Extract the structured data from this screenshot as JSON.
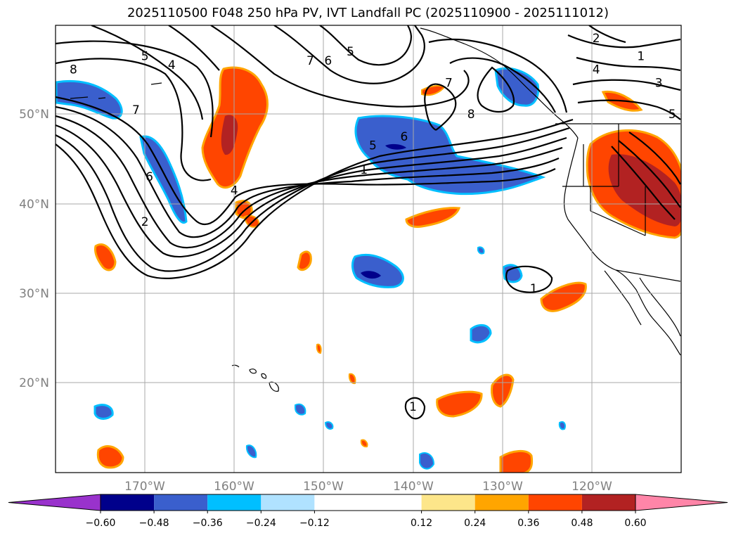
{
  "chart_data": {
    "type": "map-contour",
    "title": "2025110500 F048 250 hPa PV, IVT Landfall PC (2025110900 - 2025111012)",
    "xlim": [
      -180,
      -110
    ],
    "ylim": [
      10,
      60
    ],
    "lat_ticks": [
      {
        "value": 20,
        "label": "20°N"
      },
      {
        "value": 30,
        "label": "30°N"
      },
      {
        "value": 40,
        "label": "40°N"
      },
      {
        "value": 50,
        "label": "50°N"
      }
    ],
    "lon_ticks": [
      {
        "value": -170,
        "label": "170°W"
      },
      {
        "value": -160,
        "label": "160°W"
      },
      {
        "value": -150,
        "label": "150°W"
      },
      {
        "value": -140,
        "label": "140°W"
      },
      {
        "value": -130,
        "label": "130°W"
      },
      {
        "value": -120,
        "label": "120°W"
      }
    ],
    "colorbar": {
      "levels": [
        -0.6,
        -0.48,
        -0.36,
        -0.24,
        -0.12,
        0.12,
        0.24,
        0.36,
        0.48,
        0.6
      ],
      "tick_labels": [
        "−0.60",
        "−0.48",
        "−0.36",
        "−0.24",
        "−0.12",
        "0.12",
        "0.24",
        "0.36",
        "0.48",
        "0.60"
      ],
      "colors": [
        "#9932cc",
        "#00008b",
        "#3a5fcd",
        "#00bfff",
        "#b0e2ff",
        "#ffffff",
        "#fde68a",
        "#ffa500",
        "#ff4500",
        "#b22222",
        "#ff85a8"
      ]
    },
    "contour_labels": [
      {
        "text": "8",
        "lon": -178,
        "lat": 55
      },
      {
        "text": "5",
        "lon": -170,
        "lat": 56.5
      },
      {
        "text": "4",
        "lon": -167,
        "lat": 55.5
      },
      {
        "text": "7",
        "lon": -171,
        "lat": 50.5
      },
      {
        "text": "6",
        "lon": -169.5,
        "lat": 43
      },
      {
        "text": "2",
        "lon": -170,
        "lat": 38
      },
      {
        "text": "4",
        "lon": -160,
        "lat": 41.5
      },
      {
        "text": "7",
        "lon": -151.5,
        "lat": 56
      },
      {
        "text": "6",
        "lon": -149.5,
        "lat": 56
      },
      {
        "text": "5",
        "lon": -147,
        "lat": 57
      },
      {
        "text": "6",
        "lon": -141,
        "lat": 47.5
      },
      {
        "text": "5",
        "lon": -144.5,
        "lat": 46.5
      },
      {
        "text": "1",
        "lon": -145.5,
        "lat": 43.8
      },
      {
        "text": "7",
        "lon": -136,
        "lat": 53.5
      },
      {
        "text": "8",
        "lon": -133.5,
        "lat": 50
      },
      {
        "text": "1",
        "lon": -126.5,
        "lat": 30.5
      },
      {
        "text": "1",
        "lon": -140,
        "lat": 17.3
      },
      {
        "text": "2",
        "lon": -119.5,
        "lat": 58.5
      },
      {
        "text": "1",
        "lon": -114.5,
        "lat": 56.5
      },
      {
        "text": "4",
        "lon": -119.5,
        "lat": 55
      },
      {
        "text": "3",
        "lon": -112.5,
        "lat": 53.5
      },
      {
        "text": "5",
        "lon": -111,
        "lat": 50
      }
    ]
  }
}
